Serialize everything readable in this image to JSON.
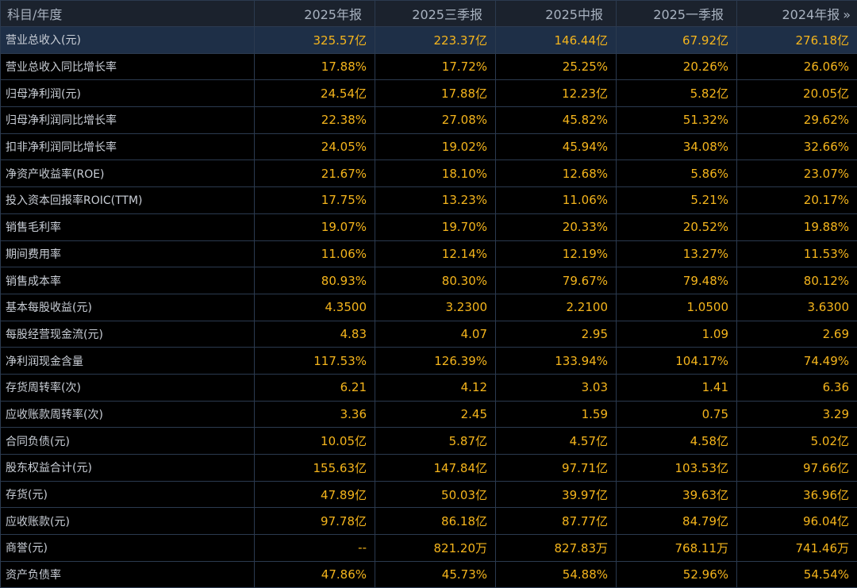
{
  "header": {
    "label_col": "科目/年度",
    "periods": [
      "2025年报",
      "2025三季报",
      "2025中报",
      "2025一季报",
      "2024年报"
    ],
    "more_icon": "double-chevron-right-icon",
    "more_glyph": "»"
  },
  "colors": {
    "value_text": "#f5b51c",
    "label_text": "#c9ced6",
    "header_bg": "#1b222d",
    "selected_row_bg": "#1e2f47",
    "grid_line": "#2b3a4f"
  },
  "rows": [
    {
      "label": "营业总收入(元)",
      "values": [
        "325.57亿",
        "223.37亿",
        "146.44亿",
        "67.92亿",
        "276.18亿"
      ]
    },
    {
      "label": "营业总收入同比增长率",
      "values": [
        "17.88%",
        "17.72%",
        "25.25%",
        "20.26%",
        "26.06%"
      ]
    },
    {
      "label": "归母净利润(元)",
      "values": [
        "24.54亿",
        "17.88亿",
        "12.23亿",
        "5.82亿",
        "20.05亿"
      ]
    },
    {
      "label": "归母净利润同比增长率",
      "values": [
        "22.38%",
        "27.08%",
        "45.82%",
        "51.32%",
        "29.62%"
      ]
    },
    {
      "label": "扣非净利润同比增长率",
      "values": [
        "24.05%",
        "19.02%",
        "45.94%",
        "34.08%",
        "32.66%"
      ]
    },
    {
      "label": "净资产收益率(ROE)",
      "values": [
        "21.67%",
        "18.10%",
        "12.68%",
        "5.86%",
        "23.07%"
      ]
    },
    {
      "label": "投入资本回报率ROIC(TTM)",
      "values": [
        "17.75%",
        "13.23%",
        "11.06%",
        "5.21%",
        "20.17%"
      ]
    },
    {
      "label": "销售毛利率",
      "values": [
        "19.07%",
        "19.70%",
        "20.33%",
        "20.52%",
        "19.88%"
      ]
    },
    {
      "label": "期间费用率",
      "values": [
        "11.06%",
        "12.14%",
        "12.19%",
        "13.27%",
        "11.53%"
      ]
    },
    {
      "label": "销售成本率",
      "values": [
        "80.93%",
        "80.30%",
        "79.67%",
        "79.48%",
        "80.12%"
      ]
    },
    {
      "label": "基本每股收益(元)",
      "values": [
        "4.3500",
        "3.2300",
        "2.2100",
        "1.0500",
        "3.6300"
      ]
    },
    {
      "label": "每股经营现金流(元)",
      "values": [
        "4.83",
        "4.07",
        "2.95",
        "1.09",
        "2.69"
      ]
    },
    {
      "label": "净利润现金含量",
      "values": [
        "117.53%",
        "126.39%",
        "133.94%",
        "104.17%",
        "74.49%"
      ]
    },
    {
      "label": "存货周转率(次)",
      "values": [
        "6.21",
        "4.12",
        "3.03",
        "1.41",
        "6.36"
      ]
    },
    {
      "label": "应收账款周转率(次)",
      "values": [
        "3.36",
        "2.45",
        "1.59",
        "0.75",
        "3.29"
      ]
    },
    {
      "label": "合同负债(元)",
      "values": [
        "10.05亿",
        "5.87亿",
        "4.57亿",
        "4.58亿",
        "5.02亿"
      ]
    },
    {
      "label": "股东权益合计(元)",
      "values": [
        "155.63亿",
        "147.84亿",
        "97.71亿",
        "103.53亿",
        "97.66亿"
      ]
    },
    {
      "label": "存货(元)",
      "values": [
        "47.89亿",
        "50.03亿",
        "39.97亿",
        "39.63亿",
        "36.96亿"
      ]
    },
    {
      "label": "应收账款(元)",
      "values": [
        "97.78亿",
        "86.18亿",
        "87.77亿",
        "84.79亿",
        "96.04亿"
      ]
    },
    {
      "label": "商誉(元)",
      "values": [
        "--",
        "821.20万",
        "827.83万",
        "768.11万",
        "741.46万"
      ]
    },
    {
      "label": "资产负债率",
      "values": [
        "47.86%",
        "45.73%",
        "54.88%",
        "52.96%",
        "54.54%"
      ]
    }
  ]
}
